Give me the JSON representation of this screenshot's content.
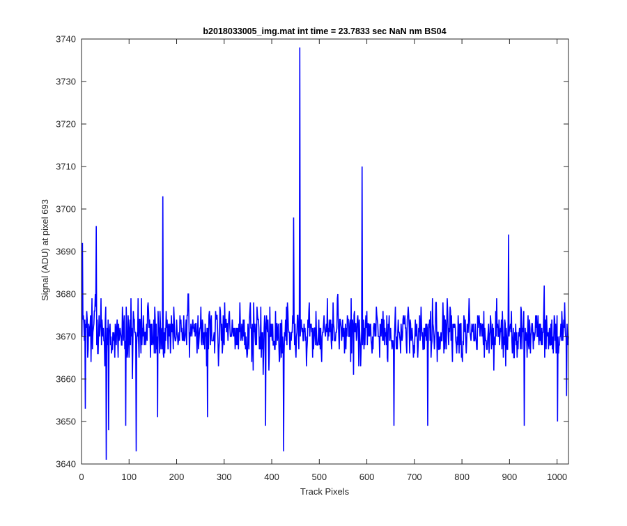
{
  "figure": {
    "background": "#ffffff",
    "axes_background": "#ffffff",
    "axis_color": "#262626",
    "line_color": "#0000ff"
  },
  "chart_data": {
    "type": "line",
    "title": "b2018033005_img.mat int time = 23.7833 sec  NaN nm BS04",
    "xlabel": "Track Pixels",
    "ylabel": "Signal (ADU) at pixel 693",
    "xlim": [
      0,
      1024
    ],
    "ylim": [
      3640,
      3740
    ],
    "xticks": [
      0,
      100,
      200,
      300,
      400,
      500,
      600,
      700,
      800,
      900,
      1000
    ],
    "yticks": [
      3640,
      3650,
      3660,
      3670,
      3680,
      3690,
      3700,
      3710,
      3720,
      3730,
      3740
    ],
    "grid": false,
    "legend": "none",
    "box": true,
    "series": [
      {
        "color": "#0000ff",
        "x_start": 1,
        "x_step": 1,
        "sample_count": 1024,
        "mean_level": 3671,
        "noise_range": [
          3656,
          3688
        ],
        "notable_points": [
          {
            "x": 2,
            "y": 3692
          },
          {
            "x": 8,
            "y": 3653
          },
          {
            "x": 31,
            "y": 3696
          },
          {
            "x": 52,
            "y": 3641
          },
          {
            "x": 57,
            "y": 3648
          },
          {
            "x": 93,
            "y": 3649
          },
          {
            "x": 115,
            "y": 3643
          },
          {
            "x": 160,
            "y": 3651
          },
          {
            "x": 171,
            "y": 3703
          },
          {
            "x": 265,
            "y": 3651
          },
          {
            "x": 387,
            "y": 3649
          },
          {
            "x": 425,
            "y": 3643
          },
          {
            "x": 446,
            "y": 3698
          },
          {
            "x": 459,
            "y": 3738
          },
          {
            "x": 590,
            "y": 3710
          },
          {
            "x": 657,
            "y": 3649
          },
          {
            "x": 728,
            "y": 3649
          },
          {
            "x": 898,
            "y": 3694
          },
          {
            "x": 931,
            "y": 3649
          },
          {
            "x": 1001,
            "y": 3650
          },
          {
            "x": 1020,
            "y": 3656
          }
        ]
      }
    ]
  }
}
